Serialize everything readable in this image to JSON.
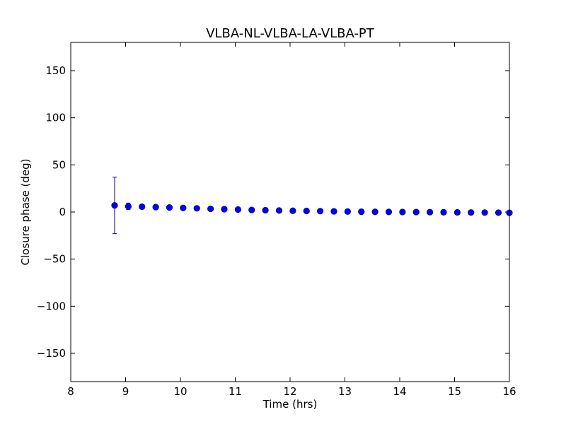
{
  "chart_data": {
    "type": "scatter",
    "title": "VLBA-NL-VLBA-LA-VLBA-PT",
    "xlabel": "Time (hrs)",
    "ylabel": "Closure phase (deg)",
    "xlim": [
      8,
      16
    ],
    "ylim": [
      -180,
      180
    ],
    "xticks": [
      8,
      9,
      10,
      11,
      12,
      13,
      14,
      15,
      16
    ],
    "yticks": [
      -150,
      -100,
      -50,
      0,
      50,
      100,
      150
    ],
    "xtick_labels": [
      "8",
      "9",
      "10",
      "11",
      "12",
      "13",
      "14",
      "15",
      "16"
    ],
    "ytick_labels": [
      "−150",
      "−100",
      "−50",
      "0",
      "50",
      "100",
      "150"
    ],
    "grid": false,
    "marker_color": "#0000ff",
    "errorbar_color": "#00008b",
    "points": [
      {
        "x": 8.8,
        "y": 7.0,
        "err": 30.0
      },
      {
        "x": 9.05,
        "y": 6.0,
        "err": 3.5
      },
      {
        "x": 9.3,
        "y": 5.6,
        "err": 1.5
      },
      {
        "x": 9.55,
        "y": 5.2,
        "err": 1.2
      },
      {
        "x": 9.8,
        "y": 4.8,
        "err": 1.0
      },
      {
        "x": 10.05,
        "y": 4.3,
        "err": 0.9
      },
      {
        "x": 10.3,
        "y": 3.9,
        "err": 0.8
      },
      {
        "x": 10.55,
        "y": 3.4,
        "err": 0.8
      },
      {
        "x": 10.8,
        "y": 3.0,
        "err": 0.7
      },
      {
        "x": 11.05,
        "y": 2.6,
        "err": 0.7
      },
      {
        "x": 11.3,
        "y": 2.2,
        "err": 0.6
      },
      {
        "x": 11.55,
        "y": 1.9,
        "err": 0.6
      },
      {
        "x": 11.8,
        "y": 1.6,
        "err": 0.6
      },
      {
        "x": 12.05,
        "y": 1.3,
        "err": 0.5
      },
      {
        "x": 12.3,
        "y": 1.1,
        "err": 0.5
      },
      {
        "x": 12.55,
        "y": 0.9,
        "err": 0.5
      },
      {
        "x": 12.8,
        "y": 0.7,
        "err": 0.5
      },
      {
        "x": 13.05,
        "y": 0.5,
        "err": 0.5
      },
      {
        "x": 13.3,
        "y": 0.3,
        "err": 0.5
      },
      {
        "x": 13.55,
        "y": 0.2,
        "err": 0.5
      },
      {
        "x": 13.8,
        "y": 0.1,
        "err": 0.5
      },
      {
        "x": 14.05,
        "y": 0.0,
        "err": 0.5
      },
      {
        "x": 14.3,
        "y": -0.1,
        "err": 0.5
      },
      {
        "x": 14.55,
        "y": -0.2,
        "err": 0.5
      },
      {
        "x": 14.8,
        "y": -0.3,
        "err": 0.5
      },
      {
        "x": 15.05,
        "y": -0.4,
        "err": 0.5
      },
      {
        "x": 15.3,
        "y": -0.5,
        "err": 0.5
      },
      {
        "x": 15.55,
        "y": -0.6,
        "err": 0.5
      },
      {
        "x": 15.8,
        "y": -0.7,
        "err": 0.5
      },
      {
        "x": 16.0,
        "y": -0.8,
        "err": 0.5
      }
    ]
  }
}
